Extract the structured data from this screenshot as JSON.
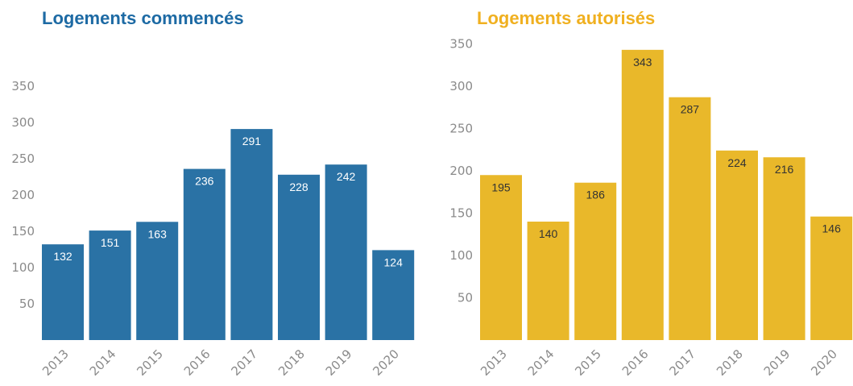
{
  "chart_data": [
    {
      "type": "bar",
      "title": "Logements commencés",
      "color": "#2a72a5",
      "title_color": "#1d6aa4",
      "label_color": "#ffffff",
      "categories": [
        "2013",
        "2014",
        "2015",
        "2016",
        "2017",
        "2018",
        "2019",
        "2020"
      ],
      "values": [
        132,
        151,
        163,
        236,
        291,
        228,
        242,
        124
      ],
      "data_labels": [
        "132",
        "151",
        "163",
        "236",
        "291",
        "228",
        "242",
        "124"
      ],
      "yticks": [
        "50",
        "100",
        "150",
        "200",
        "250",
        "300",
        "350"
      ],
      "ylim": [
        0,
        350
      ],
      "grid": false
    },
    {
      "type": "bar",
      "title": "Logements autorisés",
      "color": "#e9b82a",
      "title_color": "#f0b020",
      "label_color": "#333333",
      "categories": [
        "2013",
        "2014",
        "2015",
        "2016",
        "2017",
        "2018",
        "2019",
        "2020"
      ],
      "values": [
        195,
        140,
        186,
        343,
        287,
        224,
        216,
        146
      ],
      "data_labels": [
        "195",
        "140",
        "186",
        "343",
        "287",
        "224",
        "216",
        "146"
      ],
      "yticks": [
        "50",
        "100",
        "150",
        "200",
        "250",
        "300",
        "350"
      ],
      "ylim": [
        0,
        350
      ],
      "grid": false
    }
  ]
}
